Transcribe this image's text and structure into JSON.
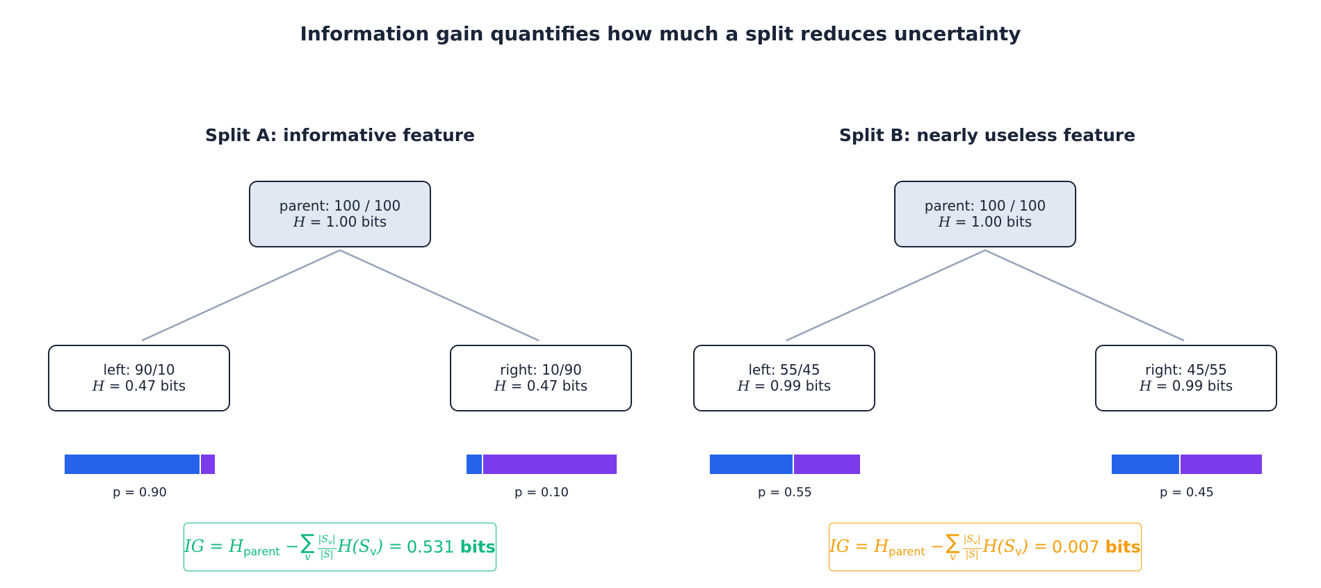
{
  "title": "Information gain quantifies how much a split reduces uncertainty",
  "colors": {
    "class_a": "#2563eb",
    "class_b": "#7c3aed",
    "edge": "#94a3b8",
    "node_border": "#1a2438",
    "parent_fill": "#e1e8f1",
    "ig_good": "#10b981",
    "ig_poor": "#f59e0b"
  },
  "splits": [
    {
      "subtitle": "Split A: informative feature",
      "parent": {
        "label": "parent: 100 / 100",
        "h_value": "1.00",
        "unit": "bits"
      },
      "left": {
        "label": "left: 90/10",
        "h_value": "0.47",
        "unit": "bits",
        "p_label": "p = 0.90",
        "p": 0.9
      },
      "right": {
        "label": "right: 10/90",
        "h_value": "0.47",
        "unit": "bits",
        "p_label": "p = 0.10",
        "p": 0.1
      },
      "ig": {
        "value": "0.531",
        "unit": "bits"
      }
    },
    {
      "subtitle": "Split B: nearly useless feature",
      "parent": {
        "label": "parent: 100 / 100",
        "h_value": "1.00",
        "unit": "bits"
      },
      "left": {
        "label": "left: 55/45",
        "h_value": "0.99",
        "unit": "bits",
        "p_label": "p = 0.55",
        "p": 0.55
      },
      "right": {
        "label": "right: 45/55",
        "h_value": "0.99",
        "unit": "bits",
        "p_label": "p = 0.45",
        "p": 0.45
      },
      "ig": {
        "value": "0.007",
        "unit": "bits"
      }
    }
  ]
}
